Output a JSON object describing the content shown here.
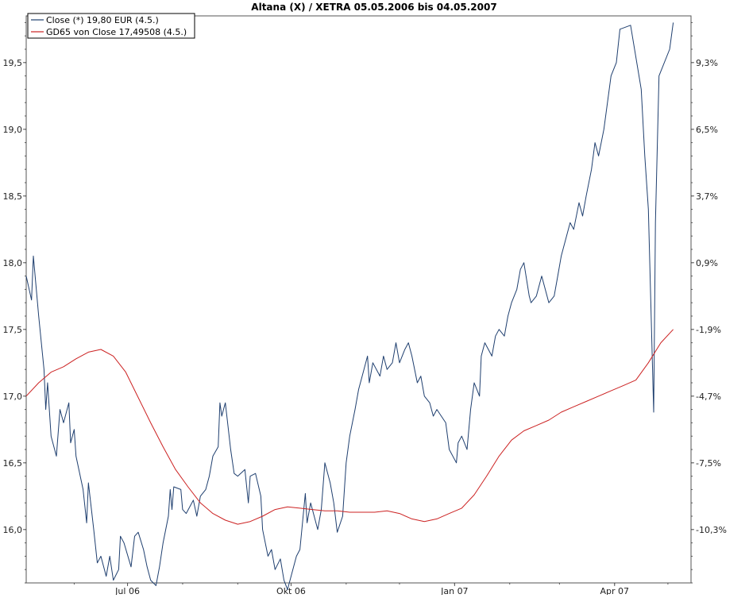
{
  "chart_data": {
    "type": "line",
    "title": "Altana (X) / XETRA 05.05.2006 bis 04.05.2007",
    "xlabel": "",
    "ylabel": "",
    "x_tick_labels": [
      "Jul 06",
      "Okt 06",
      "Jan 07",
      "Apr 07"
    ],
    "x_ticks": [
      "2006-07-01",
      "2006-10-01",
      "2007-01-01",
      "2007-04-01"
    ],
    "xlim": [
      "2006-05-05",
      "2007-05-14"
    ],
    "ylim": [
      15.6,
      19.85
    ],
    "y_ticks": [
      16.0,
      16.5,
      17.0,
      17.5,
      18.0,
      18.5,
      19.0,
      19.5
    ],
    "y_tick_labels": [
      "16,0",
      "16,5",
      "17,0",
      "17,5",
      "18,0",
      "18,5",
      "19,0",
      "19,5"
    ],
    "y2_tick_labels": [
      "-10,3%",
      "-7,5%",
      "-4,7%",
      "-1,9%",
      "0,9%",
      "3,7%",
      "6,5%",
      "9,3%"
    ],
    "grid": true,
    "legend_position": "top-left",
    "colors": {
      "close": "#1f3f6f",
      "gd65": "#cc2222",
      "grid": "#bbbbbb",
      "axis": "#555555"
    },
    "series": [
      {
        "name": "Close (*) 19,80 EUR (4.5.)",
        "color": "#1f3f6f",
        "points": [
          [
            "2006-05-05",
            17.9
          ],
          [
            "2006-05-08",
            17.72
          ],
          [
            "2006-05-09",
            18.05
          ],
          [
            "2006-05-12",
            17.6
          ],
          [
            "2006-05-15",
            17.2
          ],
          [
            "2006-05-16",
            16.9
          ],
          [
            "2006-05-17",
            17.1
          ],
          [
            "2006-05-19",
            16.7
          ],
          [
            "2006-05-22",
            16.55
          ],
          [
            "2006-05-24",
            16.9
          ],
          [
            "2006-05-26",
            16.8
          ],
          [
            "2006-05-29",
            16.95
          ],
          [
            "2006-05-30",
            16.65
          ],
          [
            "2006-06-01",
            16.75
          ],
          [
            "2006-06-02",
            16.55
          ],
          [
            "2006-06-06",
            16.3
          ],
          [
            "2006-06-08",
            16.05
          ],
          [
            "2006-06-09",
            16.35
          ],
          [
            "2006-06-12",
            16.0
          ],
          [
            "2006-06-14",
            15.75
          ],
          [
            "2006-06-16",
            15.8
          ],
          [
            "2006-06-19",
            15.65
          ],
          [
            "2006-06-21",
            15.8
          ],
          [
            "2006-06-23",
            15.62
          ],
          [
            "2006-06-26",
            15.7
          ],
          [
            "2006-06-27",
            15.95
          ],
          [
            "2006-06-29",
            15.9
          ],
          [
            "2006-07-03",
            15.72
          ],
          [
            "2006-07-05",
            15.95
          ],
          [
            "2006-07-07",
            15.98
          ],
          [
            "2006-07-10",
            15.85
          ],
          [
            "2006-07-12",
            15.72
          ],
          [
            "2006-07-14",
            15.62
          ],
          [
            "2006-07-17",
            15.58
          ],
          [
            "2006-07-19",
            15.72
          ],
          [
            "2006-07-21",
            15.9
          ],
          [
            "2006-07-24",
            16.1
          ],
          [
            "2006-07-25",
            16.3
          ],
          [
            "2006-07-26",
            16.15
          ],
          [
            "2006-07-27",
            16.32
          ],
          [
            "2006-07-31",
            16.3
          ],
          [
            "2006-08-01",
            16.15
          ],
          [
            "2006-08-03",
            16.12
          ],
          [
            "2006-08-07",
            16.22
          ],
          [
            "2006-08-09",
            16.1
          ],
          [
            "2006-08-11",
            16.25
          ],
          [
            "2006-08-14",
            16.3
          ],
          [
            "2006-08-16",
            16.4
          ],
          [
            "2006-08-18",
            16.55
          ],
          [
            "2006-08-21",
            16.62
          ],
          [
            "2006-08-22",
            16.95
          ],
          [
            "2006-08-23",
            16.85
          ],
          [
            "2006-08-25",
            16.95
          ],
          [
            "2006-08-28",
            16.6
          ],
          [
            "2006-08-30",
            16.42
          ],
          [
            "2006-09-01",
            16.4
          ],
          [
            "2006-09-05",
            16.45
          ],
          [
            "2006-09-07",
            16.2
          ],
          [
            "2006-09-08",
            16.4
          ],
          [
            "2006-09-11",
            16.42
          ],
          [
            "2006-09-14",
            16.25
          ],
          [
            "2006-09-15",
            16.0
          ],
          [
            "2006-09-18",
            15.8
          ],
          [
            "2006-09-20",
            15.85
          ],
          [
            "2006-09-22",
            15.7
          ],
          [
            "2006-09-25",
            15.78
          ],
          [
            "2006-09-27",
            15.62
          ],
          [
            "2006-09-29",
            15.55
          ],
          [
            "2006-10-02",
            15.7
          ],
          [
            "2006-10-04",
            15.8
          ],
          [
            "2006-10-06",
            15.85
          ],
          [
            "2006-10-09",
            16.27
          ],
          [
            "2006-10-10",
            16.05
          ],
          [
            "2006-10-12",
            16.2
          ],
          [
            "2006-10-16",
            16.0
          ],
          [
            "2006-10-18",
            16.15
          ],
          [
            "2006-10-20",
            16.5
          ],
          [
            "2006-10-23",
            16.35
          ],
          [
            "2006-10-25",
            16.2
          ],
          [
            "2006-10-27",
            15.98
          ],
          [
            "2006-10-30",
            16.1
          ],
          [
            "2006-11-01",
            16.5
          ],
          [
            "2006-11-03",
            16.7
          ],
          [
            "2006-11-06",
            16.9
          ],
          [
            "2006-11-08",
            17.05
          ],
          [
            "2006-11-10",
            17.15
          ],
          [
            "2006-11-13",
            17.3
          ],
          [
            "2006-11-14",
            17.1
          ],
          [
            "2006-11-16",
            17.25
          ],
          [
            "2006-11-20",
            17.15
          ],
          [
            "2006-11-22",
            17.3
          ],
          [
            "2006-11-24",
            17.2
          ],
          [
            "2006-11-27",
            17.25
          ],
          [
            "2006-11-29",
            17.4
          ],
          [
            "2006-12-01",
            17.25
          ],
          [
            "2006-12-04",
            17.35
          ],
          [
            "2006-12-06",
            17.4
          ],
          [
            "2006-12-08",
            17.3
          ],
          [
            "2006-12-11",
            17.1
          ],
          [
            "2006-12-13",
            17.15
          ],
          [
            "2006-12-15",
            17.0
          ],
          [
            "2006-12-18",
            16.95
          ],
          [
            "2006-12-20",
            16.85
          ],
          [
            "2006-12-22",
            16.9
          ],
          [
            "2006-12-27",
            16.8
          ],
          [
            "2006-12-29",
            16.6
          ],
          [
            "2007-01-02",
            16.5
          ],
          [
            "2007-01-03",
            16.65
          ],
          [
            "2007-01-05",
            16.7
          ],
          [
            "2007-01-08",
            16.6
          ],
          [
            "2007-01-10",
            16.9
          ],
          [
            "2007-01-12",
            17.1
          ],
          [
            "2007-01-15",
            17.0
          ],
          [
            "2007-01-16",
            17.3
          ],
          [
            "2007-01-18",
            17.4
          ],
          [
            "2007-01-22",
            17.3
          ],
          [
            "2007-01-24",
            17.45
          ],
          [
            "2007-01-26",
            17.5
          ],
          [
            "2007-01-29",
            17.45
          ],
          [
            "2007-01-31",
            17.6
          ],
          [
            "2007-02-02",
            17.7
          ],
          [
            "2007-02-05",
            17.8
          ],
          [
            "2007-02-07",
            17.95
          ],
          [
            "2007-02-09",
            18.0
          ],
          [
            "2007-02-12",
            17.75
          ],
          [
            "2007-02-13",
            17.7
          ],
          [
            "2007-02-16",
            17.75
          ],
          [
            "2007-02-19",
            17.9
          ],
          [
            "2007-02-21",
            17.8
          ],
          [
            "2007-02-23",
            17.7
          ],
          [
            "2007-02-26",
            17.75
          ],
          [
            "2007-02-28",
            17.9
          ],
          [
            "2007-03-02",
            18.05
          ],
          [
            "2007-03-05",
            18.2
          ],
          [
            "2007-03-07",
            18.3
          ],
          [
            "2007-03-09",
            18.25
          ],
          [
            "2007-03-12",
            18.45
          ],
          [
            "2007-03-14",
            18.35
          ],
          [
            "2007-03-16",
            18.5
          ],
          [
            "2007-03-19",
            18.7
          ],
          [
            "2007-03-21",
            18.9
          ],
          [
            "2007-03-23",
            18.8
          ],
          [
            "2007-03-26",
            19.0
          ],
          [
            "2007-03-28",
            19.2
          ],
          [
            "2007-03-30",
            19.4
          ],
          [
            "2007-04-02",
            19.5
          ],
          [
            "2007-04-04",
            19.75
          ],
          [
            "2007-04-10",
            19.78
          ],
          [
            "2007-04-16",
            19.3
          ],
          [
            "2007-04-18",
            18.8
          ],
          [
            "2007-04-20",
            18.4
          ],
          [
            "2007-04-23",
            16.88
          ],
          [
            "2007-04-24",
            18.3
          ],
          [
            "2007-04-26",
            19.4
          ],
          [
            "2007-05-02",
            19.6
          ],
          [
            "2007-05-04",
            19.8
          ]
        ]
      },
      {
        "name": "GD65 von Close 17,49508 (4.5.)",
        "color": "#cc2222",
        "points": [
          [
            "2006-05-05",
            17.0
          ],
          [
            "2006-05-12",
            17.1
          ],
          [
            "2006-05-19",
            17.18
          ],
          [
            "2006-05-26",
            17.22
          ],
          [
            "2006-06-02",
            17.28
          ],
          [
            "2006-06-09",
            17.33
          ],
          [
            "2006-06-16",
            17.35
          ],
          [
            "2006-06-23",
            17.3
          ],
          [
            "2006-06-30",
            17.18
          ],
          [
            "2006-07-07",
            16.99
          ],
          [
            "2006-07-14",
            16.8
          ],
          [
            "2006-07-21",
            16.62
          ],
          [
            "2006-07-28",
            16.45
          ],
          [
            "2006-08-04",
            16.32
          ],
          [
            "2006-08-11",
            16.2
          ],
          [
            "2006-08-18",
            16.12
          ],
          [
            "2006-08-25",
            16.07
          ],
          [
            "2006-09-01",
            16.04
          ],
          [
            "2006-09-08",
            16.06
          ],
          [
            "2006-09-15",
            16.1
          ],
          [
            "2006-09-22",
            16.15
          ],
          [
            "2006-09-29",
            16.17
          ],
          [
            "2006-10-06",
            16.16
          ],
          [
            "2006-10-13",
            16.15
          ],
          [
            "2006-10-20",
            16.14
          ],
          [
            "2006-10-27",
            16.14
          ],
          [
            "2006-11-03",
            16.13
          ],
          [
            "2006-11-10",
            16.13
          ],
          [
            "2006-11-17",
            16.13
          ],
          [
            "2006-11-24",
            16.14
          ],
          [
            "2006-12-01",
            16.12
          ],
          [
            "2006-12-08",
            16.08
          ],
          [
            "2006-12-15",
            16.06
          ],
          [
            "2006-12-22",
            16.08
          ],
          [
            "2006-12-29",
            16.12
          ],
          [
            "2007-01-05",
            16.16
          ],
          [
            "2007-01-12",
            16.26
          ],
          [
            "2007-01-19",
            16.4
          ],
          [
            "2007-01-26",
            16.55
          ],
          [
            "2007-02-02",
            16.67
          ],
          [
            "2007-02-09",
            16.74
          ],
          [
            "2007-02-16",
            16.78
          ],
          [
            "2007-02-23",
            16.82
          ],
          [
            "2007-03-02",
            16.88
          ],
          [
            "2007-03-09",
            16.92
          ],
          [
            "2007-03-16",
            16.96
          ],
          [
            "2007-03-23",
            17.0
          ],
          [
            "2007-03-30",
            17.04
          ],
          [
            "2007-04-06",
            17.08
          ],
          [
            "2007-04-13",
            17.12
          ],
          [
            "2007-04-20",
            17.25
          ],
          [
            "2007-04-27",
            17.4
          ],
          [
            "2007-05-04",
            17.5
          ]
        ]
      }
    ]
  }
}
